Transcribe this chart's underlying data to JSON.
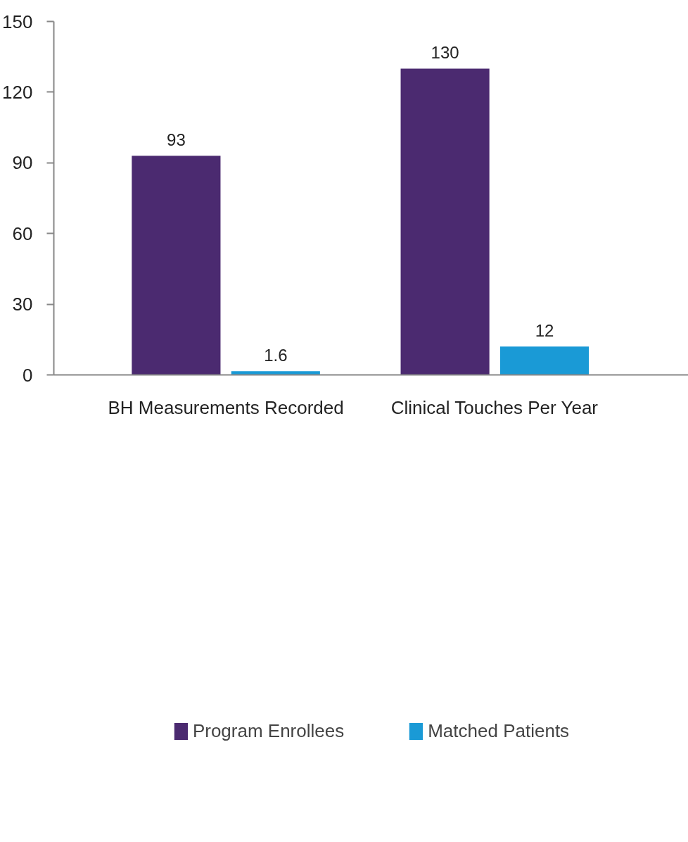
{
  "chart_data": {
    "type": "bar",
    "categories": [
      "BH Measurements Recorded",
      "Clinical Touches Per Year"
    ],
    "series": [
      {
        "name": "Program Enrollees",
        "color": "#4b2a70",
        "values": [
          93,
          130
        ]
      },
      {
        "name": "Matched Patients",
        "color": "#1a9ad6",
        "values": [
          1.6,
          12
        ]
      }
    ],
    "ylim": [
      0,
      150
    ],
    "yticks": [
      0,
      30,
      60,
      90,
      120,
      150
    ],
    "data_labels": true,
    "grid": false,
    "legend": "bottom"
  }
}
